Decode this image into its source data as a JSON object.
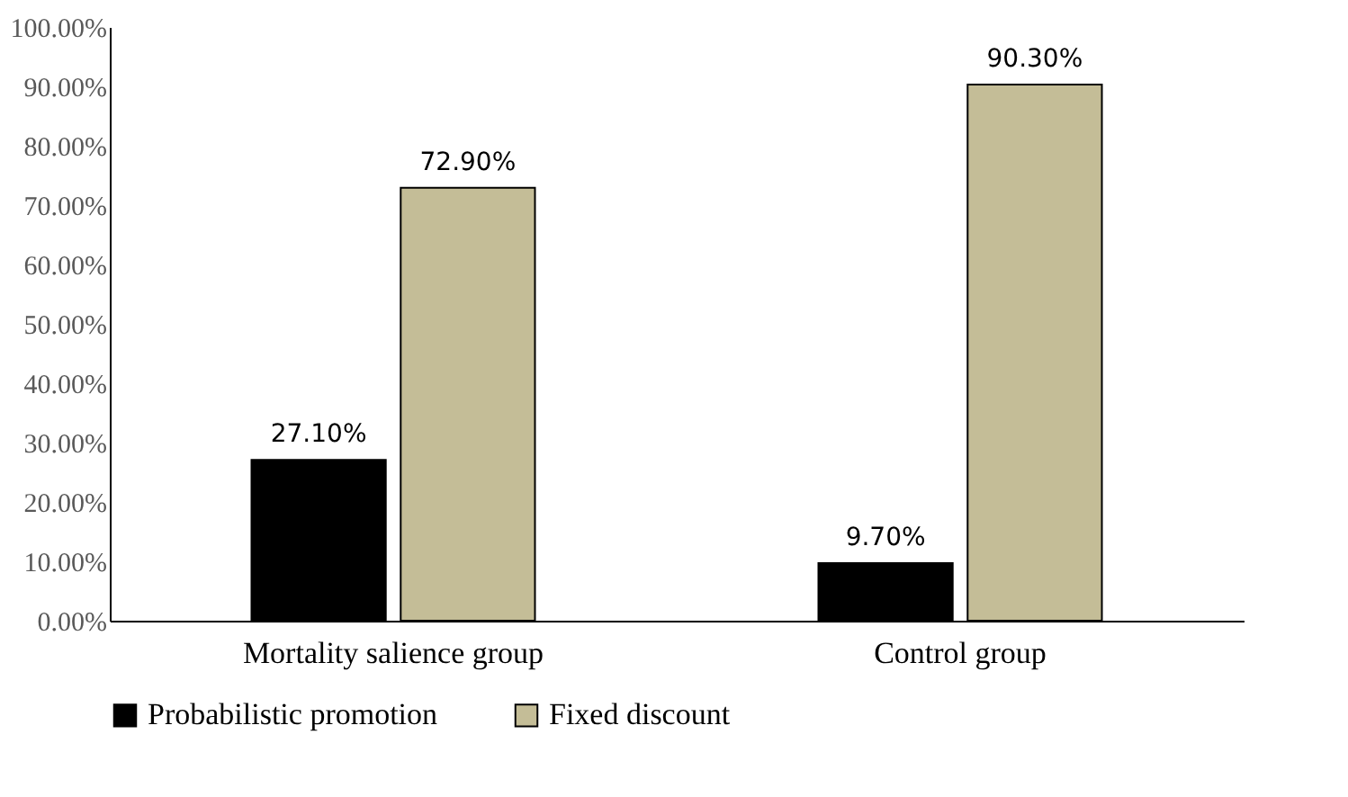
{
  "chart_data": {
    "type": "bar",
    "categories": [
      "Mortality salience group",
      "Control group"
    ],
    "series": [
      {
        "name": "Probabilistic promotion",
        "color": "#000000",
        "values": [
          27.1,
          9.7
        ],
        "value_labels": [
          "27.10%",
          "9.70%"
        ]
      },
      {
        "name": "Fixed discount",
        "color": "#c4bd97",
        "values": [
          72.9,
          90.3
        ],
        "value_labels": [
          "72.90%",
          "90.30%"
        ]
      }
    ],
    "ylim": [
      0,
      100
    ],
    "yticks": [
      {
        "value": 0,
        "label": "0.00%"
      },
      {
        "value": 10,
        "label": "10.00%"
      },
      {
        "value": 20,
        "label": "20.00%"
      },
      {
        "value": 30,
        "label": "30.00%"
      },
      {
        "value": 40,
        "label": "40.00%"
      },
      {
        "value": 50,
        "label": "50.00%"
      },
      {
        "value": 60,
        "label": "60.00%"
      },
      {
        "value": 70,
        "label": "70.00%"
      },
      {
        "value": 80,
        "label": "80.00%"
      },
      {
        "value": 90,
        "label": "90.00%"
      },
      {
        "value": 100,
        "label": "100.00%"
      }
    ],
    "grid": false,
    "legend": "bottom"
  }
}
